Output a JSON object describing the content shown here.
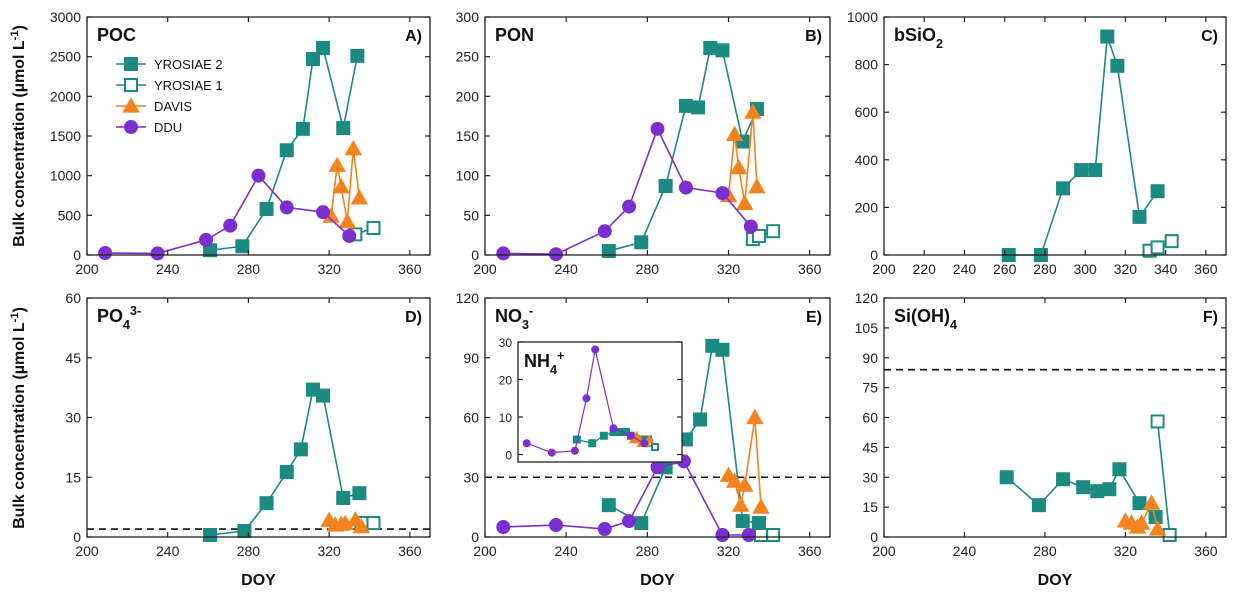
{
  "colors": {
    "yrosiae": "#1b8a80",
    "davis": "#f4821f",
    "ddu": "#7b2fd1",
    "axis": "#222222",
    "threshold": "#111111"
  },
  "legend": {
    "items": [
      {
        "name": "YROSIAE 2",
        "marker": "square-filled",
        "color": "#1b8a80"
      },
      {
        "name": "YROSIAE 1",
        "marker": "square-open",
        "color": "#1b8a80"
      },
      {
        "name": "DAVIS",
        "marker": "triangle-filled",
        "color": "#f4821f"
      },
      {
        "name": "DDU",
        "marker": "circle-filled",
        "color": "#7b2fd1"
      }
    ]
  },
  "ylabel_top": "Bulk concentration (µmol L⁻¹)",
  "ylabel_bottom": "Bulk concentration (µmol L⁻¹)",
  "xlabel": "DOY",
  "chart_data": [
    {
      "type": "line",
      "panel": "A)",
      "title": "POC",
      "xlim": [
        200,
        370
      ],
      "xticks": [
        200,
        240,
        280,
        320,
        360
      ],
      "ylim": [
        0,
        3000
      ],
      "yticks": [
        0,
        500,
        1000,
        1500,
        2000,
        2500,
        3000
      ],
      "series": [
        {
          "name": "YROSIAE 2",
          "x": [
            261,
            277,
            289,
            299,
            307,
            312,
            317,
            327,
            334
          ],
          "y": [
            60,
            110,
            580,
            1320,
            1590,
            2470,
            2610,
            1600,
            2510
          ]
        },
        {
          "name": "YROSIAE 1",
          "x": [
            333,
            342
          ],
          "y": [
            260,
            340
          ]
        },
        {
          "name": "DAVIS",
          "x": [
            321,
            324,
            326,
            329,
            332,
            335
          ],
          "y": [
            490,
            1130,
            860,
            420,
            1340,
            720
          ]
        },
        {
          "name": "DDU",
          "x": [
            209,
            235,
            259,
            271,
            285,
            299,
            317,
            330
          ],
          "y": [
            25,
            20,
            190,
            370,
            1000,
            600,
            540,
            240
          ]
        }
      ]
    },
    {
      "type": "line",
      "panel": "B)",
      "title": "PON",
      "xlim": [
        200,
        370
      ],
      "xticks": [
        200,
        240,
        280,
        320,
        360
      ],
      "ylim": [
        0,
        300
      ],
      "yticks": [
        0,
        50,
        100,
        150,
        200,
        250,
        300
      ],
      "series": [
        {
          "name": "YROSIAE 2",
          "x": [
            261,
            277,
            289,
            299,
            305,
            311,
            317,
            327,
            334
          ],
          "y": [
            5,
            16,
            87,
            188,
            186,
            261,
            258,
            143,
            184
          ]
        },
        {
          "name": "YROSIAE 1",
          "x": [
            332,
            335,
            342
          ],
          "y": [
            20,
            24,
            30
          ]
        },
        {
          "name": "DAVIS",
          "x": [
            320,
            323,
            325,
            328,
            332,
            334
          ],
          "y": [
            75,
            152,
            110,
            65,
            180,
            86
          ]
        },
        {
          "name": "DDU",
          "x": [
            209,
            235,
            259,
            271,
            285,
            299,
            317,
            331
          ],
          "y": [
            2,
            1,
            30,
            61,
            159,
            85,
            78,
            36
          ]
        }
      ]
    },
    {
      "type": "line",
      "panel": "C)",
      "title": "bSiO₂",
      "xlim": [
        200,
        370
      ],
      "xticks": [
        200,
        220,
        240,
        260,
        280,
        300,
        320,
        340,
        360
      ],
      "ylim": [
        0,
        1000
      ],
      "yticks": [
        0,
        200,
        400,
        600,
        800,
        1000
      ],
      "series": [
        {
          "name": "YROSIAE 2",
          "x": [
            262,
            278,
            289,
            298,
            305,
            311,
            316,
            327,
            336
          ],
          "y": [
            0,
            0,
            280,
            357,
            357,
            918,
            795,
            160,
            268
          ]
        },
        {
          "name": "YROSIAE 1",
          "x": [
            332,
            336,
            343
          ],
          "y": [
            18,
            32,
            58
          ]
        }
      ]
    },
    {
      "type": "line",
      "panel": "D)",
      "title": "PO₄³⁻",
      "xlim": [
        200,
        370
      ],
      "xticks": [
        200,
        240,
        280,
        320,
        360
      ],
      "ylim": [
        0,
        60
      ],
      "yticks": [
        0,
        15,
        30,
        45,
        60
      ],
      "threshold": 2,
      "series": [
        {
          "name": "YROSIAE 2",
          "x": [
            261,
            278,
            289,
            299,
            306,
            312,
            317,
            327,
            335
          ],
          "y": [
            0.5,
            1.5,
            8.5,
            16.3,
            22,
            37,
            35.5,
            9.8,
            11
          ]
        },
        {
          "name": "YROSIAE 1",
          "x": [
            336,
            342
          ],
          "y": [
            3.5,
            3.5
          ]
        },
        {
          "name": "DAVIS",
          "x": [
            320,
            323,
            326,
            328,
            333,
            336
          ],
          "y": [
            4.2,
            3,
            3.2,
            3.4,
            4.3,
            2.6
          ]
        }
      ]
    },
    {
      "type": "line",
      "panel": "E)",
      "title": "NO₃⁻",
      "xlim": [
        200,
        370
      ],
      "xticks": [
        200,
        240,
        280,
        320,
        360
      ],
      "ylim": [
        0,
        120
      ],
      "yticks": [
        0,
        30,
        60,
        90,
        120
      ],
      "threshold": 30,
      "series": [
        {
          "name": "YROSIAE 2",
          "x": [
            261,
            277,
            289,
            299,
            306,
            312,
            317,
            327,
            335
          ],
          "y": [
            16,
            7,
            35,
            49,
            59,
            96,
            94,
            8,
            7
          ]
        },
        {
          "name": "YROSIAE 1",
          "x": [
            336,
            342
          ],
          "y": [
            1,
            1
          ]
        },
        {
          "name": "DAVIS",
          "x": [
            320,
            323,
            326,
            328,
            333,
            336
          ],
          "y": [
            31,
            28,
            16,
            26,
            60,
            15
          ]
        },
        {
          "name": "DDU",
          "x": [
            209,
            235,
            259,
            271,
            285,
            298,
            317,
            330
          ],
          "y": [
            5,
            6,
            4,
            8,
            35,
            38,
            1,
            1
          ]
        }
      ],
      "inset": {
        "title": "NH₄⁺",
        "xlim": [
          200,
          370
        ],
        "ylim": [
          -2,
          30
        ],
        "yticks": [
          0,
          10,
          20,
          30
        ],
        "series": [
          {
            "name": "YROSIAE 2",
            "x": [
              261,
              277,
              289,
              299,
              306,
              312,
              317,
              327,
              335
            ],
            "y": [
              4,
              3,
              5,
              6,
              6,
              6,
              5,
              4,
              4
            ]
          },
          {
            "name": "YROSIAE 1",
            "x": [
              336,
              342
            ],
            "y": [
              3,
              2
            ]
          },
          {
            "name": "DAVIS",
            "x": [
              320,
              323,
              326,
              328,
              333,
              336
            ],
            "y": [
              4,
              5,
              4,
              3,
              3,
              4
            ]
          },
          {
            "name": "DDU",
            "x": [
              209,
              235,
              259,
              271,
              280,
              299,
              317,
              331
            ],
            "y": [
              3,
              0.5,
              1,
              15,
              28,
              7,
              5,
              3
            ]
          }
        ]
      }
    },
    {
      "type": "line",
      "panel": "F)",
      "title": "Si(OH)₄",
      "xlim": [
        200,
        370
      ],
      "xticks": [
        200,
        240,
        280,
        320,
        360
      ],
      "ylim": [
        0,
        120
      ],
      "yticks": [
        0,
        15,
        30,
        45,
        60,
        75,
        90,
        105,
        120
      ],
      "threshold": 84,
      "series": [
        {
          "name": "YROSIAE 2",
          "x": [
            261,
            277,
            289,
            299,
            306,
            312,
            317,
            327,
            335
          ],
          "y": [
            30,
            16,
            29,
            25,
            23,
            24,
            34,
            17,
            10
          ]
        },
        {
          "name": "YROSIAE 1",
          "x": [
            336,
            342
          ],
          "y": [
            58,
            1
          ]
        },
        {
          "name": "DAVIS",
          "x": [
            320,
            323,
            326,
            328,
            333,
            336
          ],
          "y": [
            8,
            7,
            5,
            7,
            17,
            4
          ]
        }
      ]
    }
  ]
}
